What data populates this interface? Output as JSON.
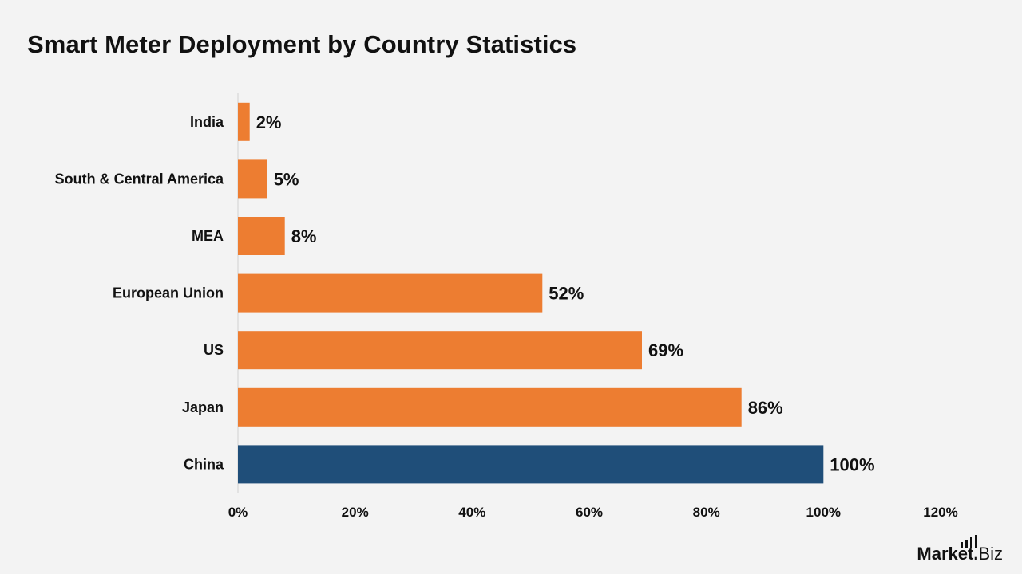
{
  "chart_data": {
    "type": "bar",
    "orientation": "horizontal",
    "title": "Smart Meter Deployment by Country Statistics",
    "categories": [
      "India",
      "South & Central America",
      "MEA",
      "European Union",
      "US",
      "Japan",
      "China"
    ],
    "values": [
      2,
      5,
      8,
      52,
      69,
      86,
      100
    ],
    "data_labels": [
      "2%",
      "5%",
      "8%",
      "52%",
      "69%",
      "86%",
      "100%"
    ],
    "unit": "%",
    "xlim": [
      0,
      120
    ],
    "x_ticks": [
      0,
      20,
      40,
      60,
      80,
      100,
      120
    ],
    "x_tick_labels": [
      "0%",
      "20%",
      "40%",
      "60%",
      "80%",
      "100%",
      "120%"
    ],
    "xlabel": "",
    "ylabel": "",
    "grid": false,
    "legend": "none",
    "colors": {
      "default_bar": "#ed7d31",
      "highlight_bar": "#1f4e79",
      "highlight_category": "China",
      "axis_line": "#d0d0d0",
      "background": "#f3f3f3"
    }
  },
  "brand": {
    "text_part1": "Mark",
    "text_part2": "et.",
    "text_part3": "Biz",
    "icon": "bar-signal-icon"
  }
}
